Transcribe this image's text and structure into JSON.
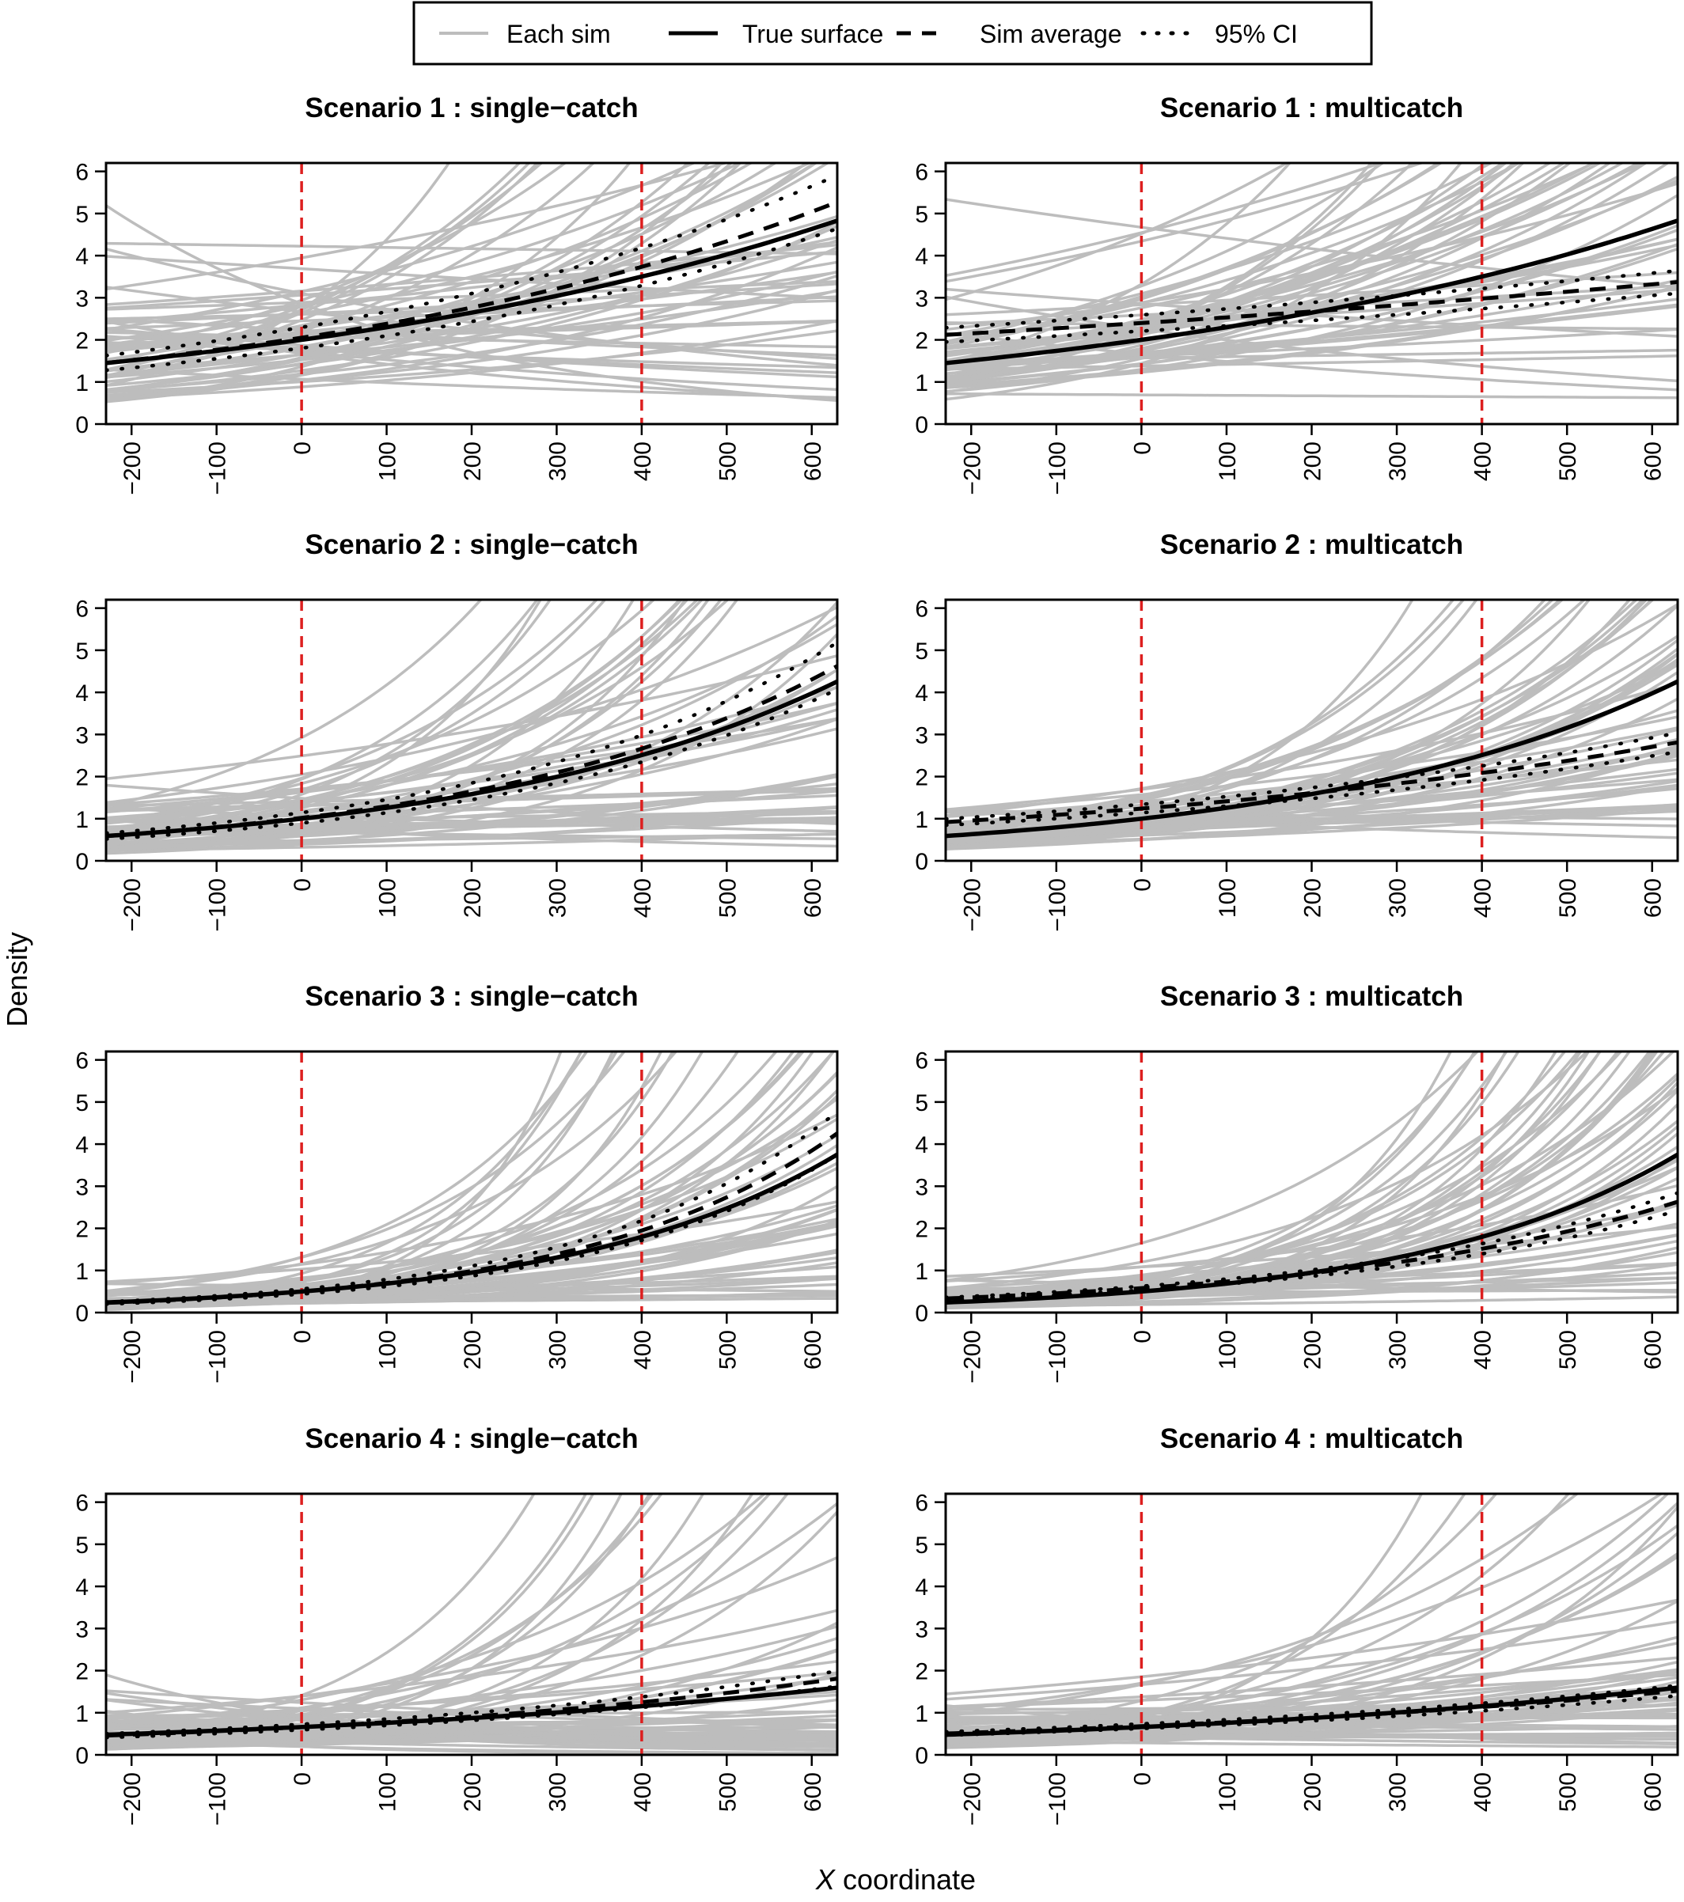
{
  "figure": {
    "ylabel": "Density",
    "xlabel_italic": "X",
    "xlabel_rest": " coordinate"
  },
  "legend": {
    "items": [
      {
        "label": "Each sim",
        "style": "gray-solid",
        "color": "#bdbdbd"
      },
      {
        "label": "True surface",
        "style": "black-solid",
        "color": "#000000"
      },
      {
        "label": "Sim average",
        "style": "black-dashed",
        "color": "#000000"
      },
      {
        "label": "95% CI",
        "style": "black-dotted",
        "color": "#000000"
      }
    ],
    "placement": "top-center"
  },
  "colors": {
    "sim_lines": "#bdbdbd",
    "true_surface": "#000000",
    "sim_average": "#000000",
    "ci": "#000000",
    "reference_lines": "#dd1f1f"
  },
  "chart_data": [
    {
      "type": "line",
      "title": "Scenario  1 : single−catch",
      "xlim": [
        -230,
        630
      ],
      "ylim": [
        0,
        6.2
      ],
      "xticks": [
        -200,
        -100,
        0,
        100,
        200,
        300,
        400,
        500,
        600
      ],
      "yticks": [
        0,
        1,
        2,
        3,
        4,
        5,
        6
      ],
      "vlines": [
        0,
        400
      ],
      "true_surface": {
        "a": 2.0,
        "b": 0.0014
      },
      "sim_average": {
        "a": 2.05,
        "b": 0.0015
      },
      "ci_width": 0.12,
      "sim_lines": {
        "count": 60,
        "cv": 0.36,
        "b_spread": 0.0016
      }
    },
    {
      "type": "line",
      "title": "Scenario  1 : multicatch",
      "xlim": [
        -230,
        630
      ],
      "ylim": [
        0,
        6.2
      ],
      "xticks": [
        -200,
        -100,
        0,
        100,
        200,
        300,
        400,
        500,
        600
      ],
      "yticks": [
        0,
        1,
        2,
        3,
        4,
        5,
        6
      ],
      "vlines": [
        0,
        400
      ],
      "true_surface": {
        "a": 2.0,
        "b": 0.0014
      },
      "sim_average": {
        "a": 2.4,
        "b": 0.00054
      },
      "ci_width": 0.08,
      "sim_lines": {
        "count": 60,
        "cv": 0.34,
        "b_spread": 0.0011
      }
    },
    {
      "type": "line",
      "title": "Scenario  2 : single−catch",
      "xlim": [
        -230,
        630
      ],
      "ylim": [
        0,
        6.2
      ],
      "xticks": [
        -200,
        -100,
        0,
        100,
        200,
        300,
        400,
        500,
        600
      ],
      "yticks": [
        0,
        1,
        2,
        3,
        4,
        5,
        6
      ],
      "vlines": [
        0,
        400
      ],
      "true_surface": {
        "a": 1.0,
        "b": 0.0023
      },
      "sim_average": {
        "a": 1.02,
        "b": 0.0024
      },
      "ci_width": 0.12,
      "sim_lines": {
        "count": 60,
        "cv": 0.4,
        "b_spread": 0.0016
      }
    },
    {
      "type": "line",
      "title": "Scenario  2 : multicatch",
      "xlim": [
        -230,
        630
      ],
      "ylim": [
        0,
        6.2
      ],
      "xticks": [
        -200,
        -100,
        0,
        100,
        200,
        300,
        400,
        500,
        600
      ],
      "yticks": [
        0,
        1,
        2,
        3,
        4,
        5,
        6
      ],
      "vlines": [
        0,
        400
      ],
      "true_surface": {
        "a": 1.0,
        "b": 0.0023
      },
      "sim_average": {
        "a": 1.24,
        "b": 0.0013
      },
      "ci_width": 0.08,
      "sim_lines": {
        "count": 60,
        "cv": 0.36,
        "b_spread": 0.0012
      }
    },
    {
      "type": "line",
      "title": "Scenario  3 : single−catch",
      "xlim": [
        -230,
        630
      ],
      "ylim": [
        0,
        6.2
      ],
      "xticks": [
        -200,
        -100,
        0,
        100,
        200,
        300,
        400,
        500,
        600
      ],
      "yticks": [
        0,
        1,
        2,
        3,
        4,
        5,
        6
      ],
      "vlines": [
        0,
        400
      ],
      "true_surface": {
        "a": 0.5,
        "b": 0.0032
      },
      "sim_average": {
        "a": 0.5,
        "b": 0.0034
      },
      "ci_width": 0.12,
      "sim_lines": {
        "count": 60,
        "cv": 0.45,
        "b_spread": 0.0018
      }
    },
    {
      "type": "line",
      "title": "Scenario  3 : multicatch",
      "xlim": [
        -230,
        630
      ],
      "ylim": [
        0,
        6.2
      ],
      "xticks": [
        -200,
        -100,
        0,
        100,
        200,
        300,
        400,
        500,
        600
      ],
      "yticks": [
        0,
        1,
        2,
        3,
        4,
        5,
        6
      ],
      "vlines": [
        0,
        400
      ],
      "true_surface": {
        "a": 0.5,
        "b": 0.0032
      },
      "sim_average": {
        "a": 0.58,
        "b": 0.0024
      },
      "ci_width": 0.08,
      "sim_lines": {
        "count": 60,
        "cv": 0.42,
        "b_spread": 0.0016
      }
    },
    {
      "type": "line",
      "title": "Scenario  4 : single−catch",
      "xlim": [
        -230,
        630
      ],
      "ylim": [
        0,
        6.2
      ],
      "xticks": [
        -200,
        -100,
        0,
        100,
        200,
        300,
        400,
        500,
        600
      ],
      "yticks": [
        0,
        1,
        2,
        3,
        4,
        5,
        6
      ],
      "vlines": [
        0,
        400
      ],
      "true_surface": {
        "a": 0.66,
        "b": 0.0014
      },
      "sim_average": {
        "a": 0.66,
        "b": 0.0016
      },
      "ci_width": 0.1,
      "sim_lines": {
        "count": 60,
        "cv": 0.5,
        "b_spread": 0.0022
      }
    },
    {
      "type": "line",
      "title": "Scenario  4 : multicatch",
      "xlim": [
        -230,
        630
      ],
      "ylim": [
        0,
        6.2
      ],
      "xticks": [
        -200,
        -100,
        0,
        100,
        200,
        300,
        400,
        500,
        600
      ],
      "yticks": [
        0,
        1,
        2,
        3,
        4,
        5,
        6
      ],
      "vlines": [
        0,
        400
      ],
      "true_surface": {
        "a": 0.66,
        "b": 0.0014
      },
      "sim_average": {
        "a": 0.68,
        "b": 0.00128
      },
      "ci_width": 0.08,
      "sim_lines": {
        "count": 60,
        "cv": 0.45,
        "b_spread": 0.0018
      }
    }
  ]
}
